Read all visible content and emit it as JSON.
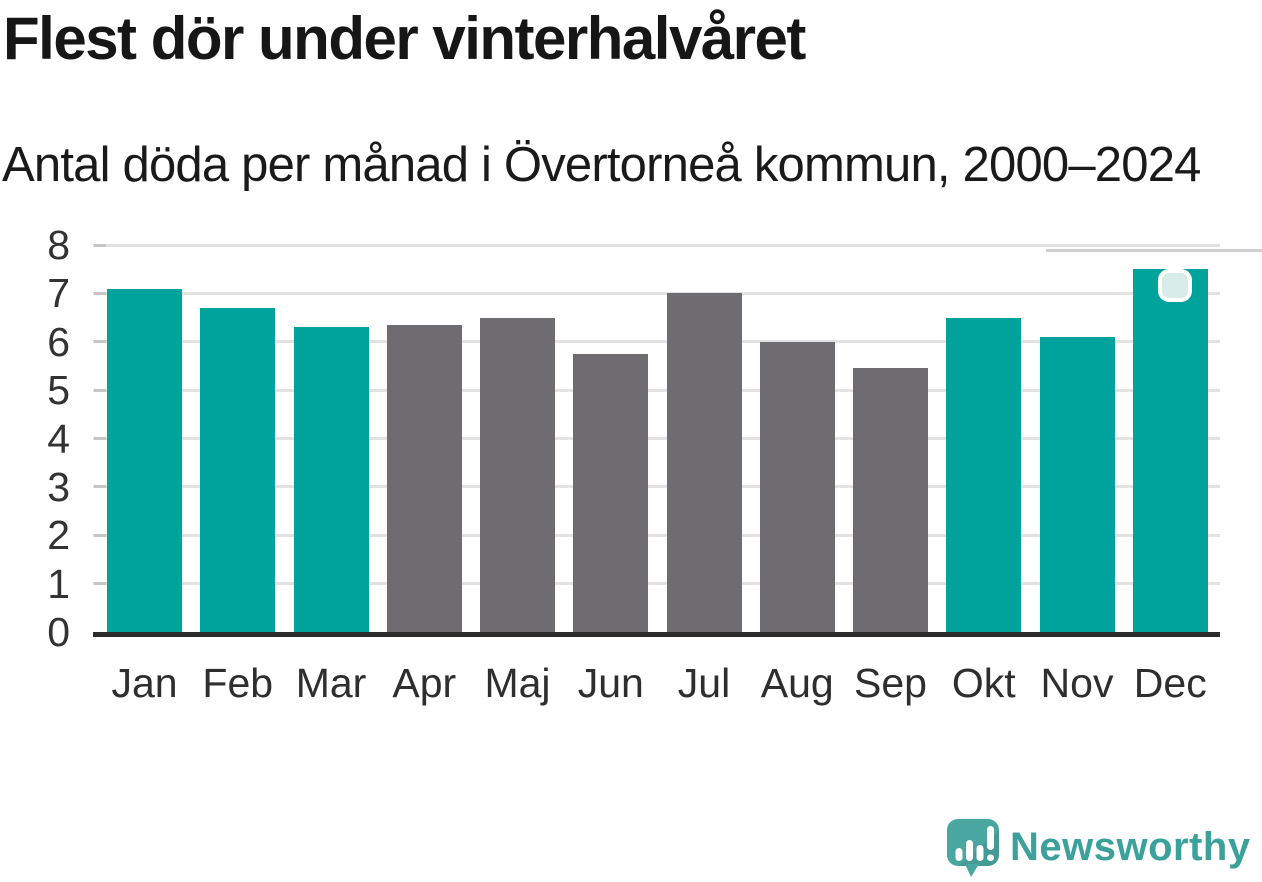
{
  "title": "Flest dör under vinterhalvåret",
  "subtitle": "Antal döda per månad i Övertorneå kommun, 2000–2024",
  "chart_data": {
    "type": "bar",
    "title": "Flest dör under vinterhalvåret",
    "subtitle": "Antal döda per månad i Övertorneå kommun, 2000–2024",
    "categories": [
      "Jan",
      "Feb",
      "Mar",
      "Apr",
      "Maj",
      "Jun",
      "Jul",
      "Aug",
      "Sep",
      "Okt",
      "Nov",
      "Dec"
    ],
    "values": [
      7.1,
      6.7,
      6.3,
      6.35,
      6.5,
      5.75,
      7.0,
      6.0,
      5.45,
      6.5,
      6.1,
      7.5
    ],
    "highlighted": [
      true,
      true,
      true,
      false,
      false,
      false,
      false,
      false,
      false,
      true,
      true,
      true
    ],
    "ylim": [
      0,
      8
    ],
    "yticks": [
      0,
      1,
      2,
      3,
      4,
      5,
      6,
      7,
      8
    ],
    "grid": true,
    "legend": false,
    "bar_color_highlight": "#00a39c",
    "bar_color_default": "#6e6b71",
    "marker_on": "Dec",
    "marker_color": "#d8ecea"
  },
  "branding": {
    "wordmark": "Newsworthy",
    "brand_color": "#3ca19b",
    "logo_icon": "speech-bubble-bar-chart-exclamation"
  }
}
